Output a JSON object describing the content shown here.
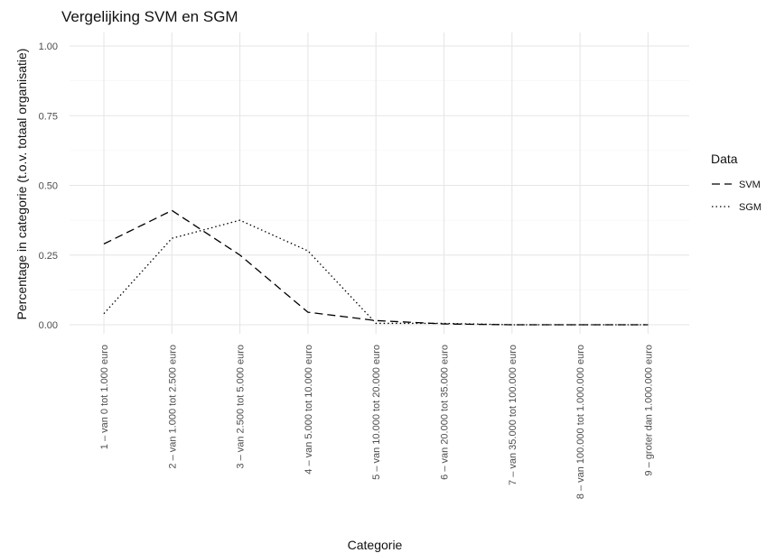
{
  "chart_data": {
    "type": "line",
    "title": "Vergelijking SVM en SGM",
    "xlabel": "Categorie",
    "ylabel": "Percentage in categorie (t.o.v. totaal organisatie)",
    "categories": [
      "1 – van 0 tot 1.000 euro",
      "2 – van 1.000 tot 2.500 euro",
      "3 – van 2.500 tot 5.000 euro",
      "4 – van 5.000 tot 10.000 euro",
      "5 – van 10.000 tot 20.000 euro",
      "6 – van 20.000 tot 35.000 euro",
      "7 – van 35.000 tot 100.000 euro",
      "8 – van 100.000 tot 1.000.000 euro",
      "9 – groter dan 1.000.000 euro"
    ],
    "series": [
      {
        "name": "SVM",
        "linetype": "dashed",
        "values": [
          0.29,
          0.41,
          0.25,
          0.045,
          0.015,
          0.003,
          0.0,
          0.0,
          0.0
        ]
      },
      {
        "name": "SGM",
        "linetype": "dotted",
        "values": [
          0.04,
          0.31,
          0.375,
          0.265,
          0.005,
          0.005,
          0.0,
          0.0,
          0.0
        ]
      }
    ],
    "ylim": [
      0,
      1
    ],
    "yticks": [
      "0.00",
      "0.25",
      "0.50",
      "0.75",
      "1.00"
    ],
    "grid": true,
    "legend": {
      "title": "Data",
      "position": "right"
    }
  }
}
